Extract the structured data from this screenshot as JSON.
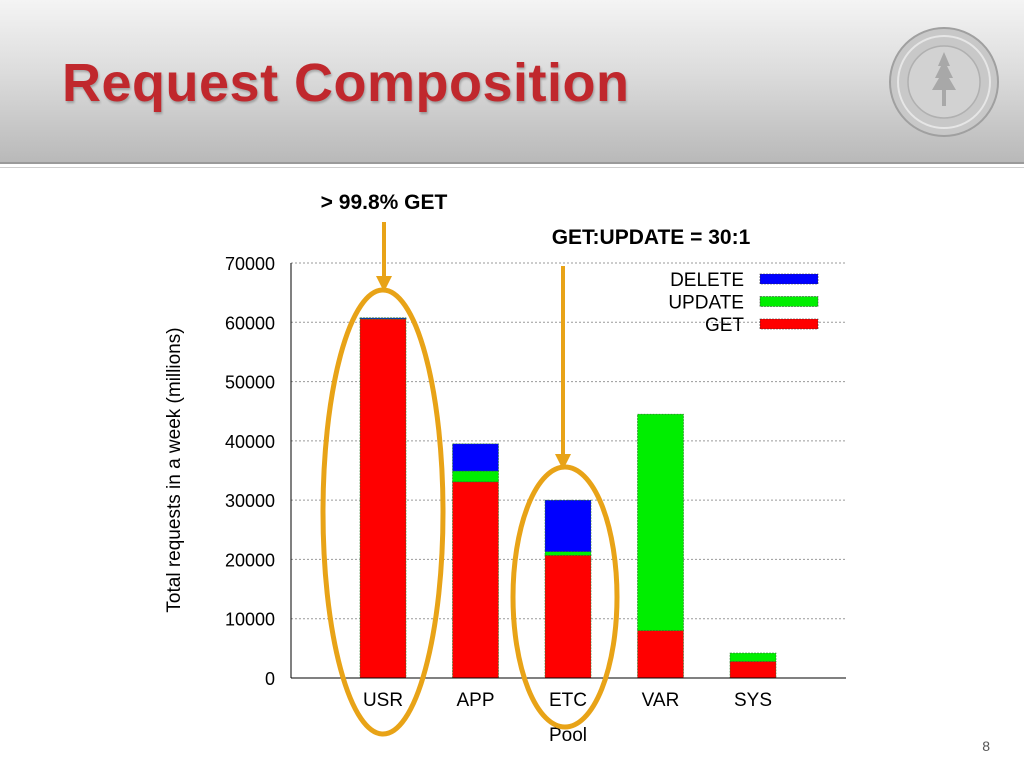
{
  "slide": {
    "title": "Request Composition",
    "page_number": "8"
  },
  "chart_data": {
    "type": "bar",
    "stacked": true,
    "categories": [
      "USR",
      "APP",
      "ETC",
      "VAR",
      "SYS"
    ],
    "series": [
      {
        "name": "GET",
        "color": "#ff0000",
        "values": [
          60600,
          33100,
          20700,
          8000,
          2800
        ]
      },
      {
        "name": "UPDATE",
        "color": "#00ee00",
        "values": [
          100,
          1800,
          600,
          36500,
          1400
        ]
      },
      {
        "name": "DELETE",
        "color": "#0000ff",
        "values": [
          50,
          4600,
          8700,
          0,
          0
        ]
      }
    ],
    "legend_order": [
      "DELETE",
      "UPDATE",
      "GET"
    ],
    "legend_position": "top-right",
    "xlabel": "Pool",
    "ylabel": "Total requests in a week (millions)",
    "ylim": [
      0,
      70000
    ],
    "yticks": [
      "0",
      "10000",
      "20000",
      "30000",
      "40000",
      "50000",
      "60000",
      "70000"
    ],
    "grid": true,
    "annotations": [
      {
        "text": "> 99.8% GET",
        "target": "USR"
      },
      {
        "text": "GET:UPDATE = 30:1",
        "target": "ETC"
      }
    ],
    "highlight_color": "#e8a317"
  }
}
